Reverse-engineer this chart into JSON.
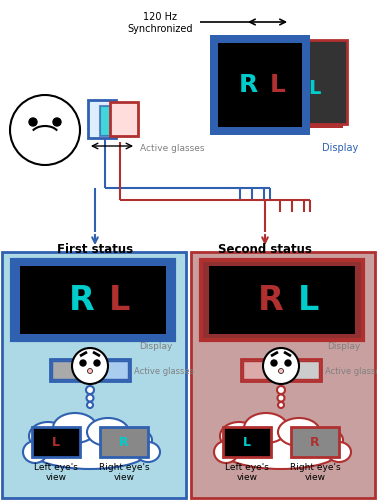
{
  "top_bg": "#ffffff",
  "left_bg": "#add8e6",
  "right_bg": "#c8a0a0",
  "blue_color": "#3060b0",
  "red_color": "#b03030",
  "cyan_color": "#00cccc",
  "display_label": "Display",
  "active_glasses_label": "Active glasses",
  "first_status": "First status",
  "second_status": "Second status",
  "left_eye_view": "Left eye's\nview",
  "right_eye_view": "Right eye's\nview",
  "hz_label": "120 Hz\nSynchronized"
}
